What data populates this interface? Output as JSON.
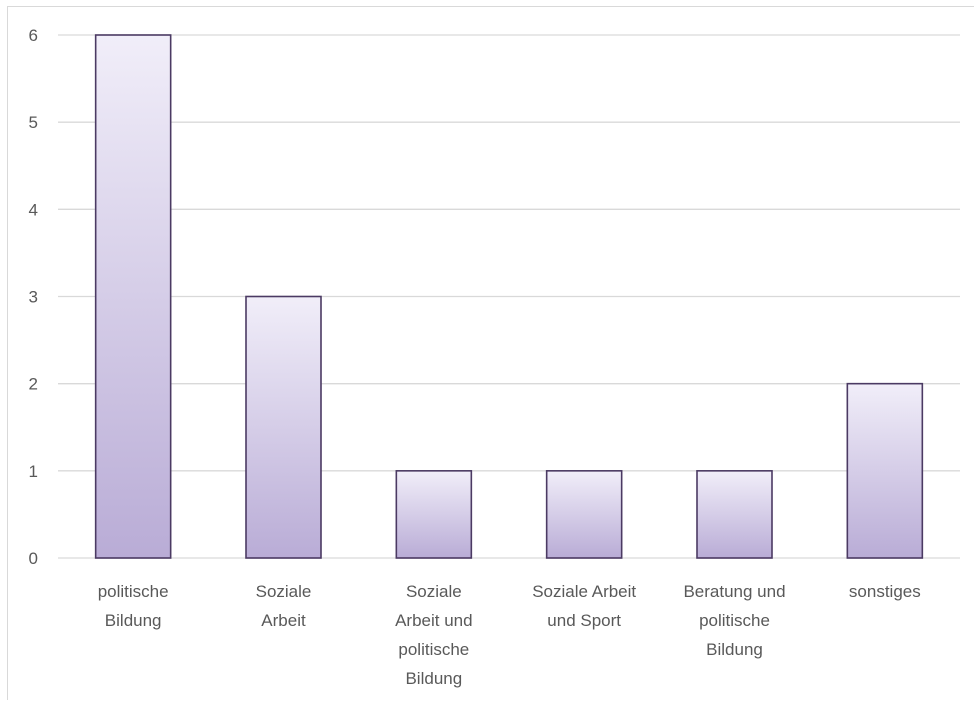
{
  "chart_data": {
    "type": "bar",
    "title": "",
    "xlabel": "",
    "ylabel": "",
    "ylim": [
      0,
      6
    ],
    "yticks": [
      0,
      1,
      2,
      3,
      4,
      5,
      6
    ],
    "grid": true,
    "legend": "none",
    "categories": [
      [
        "politische",
        "Bildung"
      ],
      [
        "Soziale",
        "Arbeit"
      ],
      [
        "Soziale",
        "Arbeit und",
        "politische",
        "Bildung"
      ],
      [
        "Soziale Arbeit",
        "und Sport"
      ],
      [
        "Beratung und",
        "politische",
        "Bildung"
      ],
      [
        "sonstiges"
      ]
    ],
    "values": [
      6,
      3,
      1,
      1,
      1,
      2
    ],
    "colors": {
      "bar_top": "#f1eef9",
      "bar_bottom": "#b9acd6",
      "bar_stroke": "#4b3a63",
      "grid": "#d9d9d9",
      "text": "#595959"
    }
  }
}
